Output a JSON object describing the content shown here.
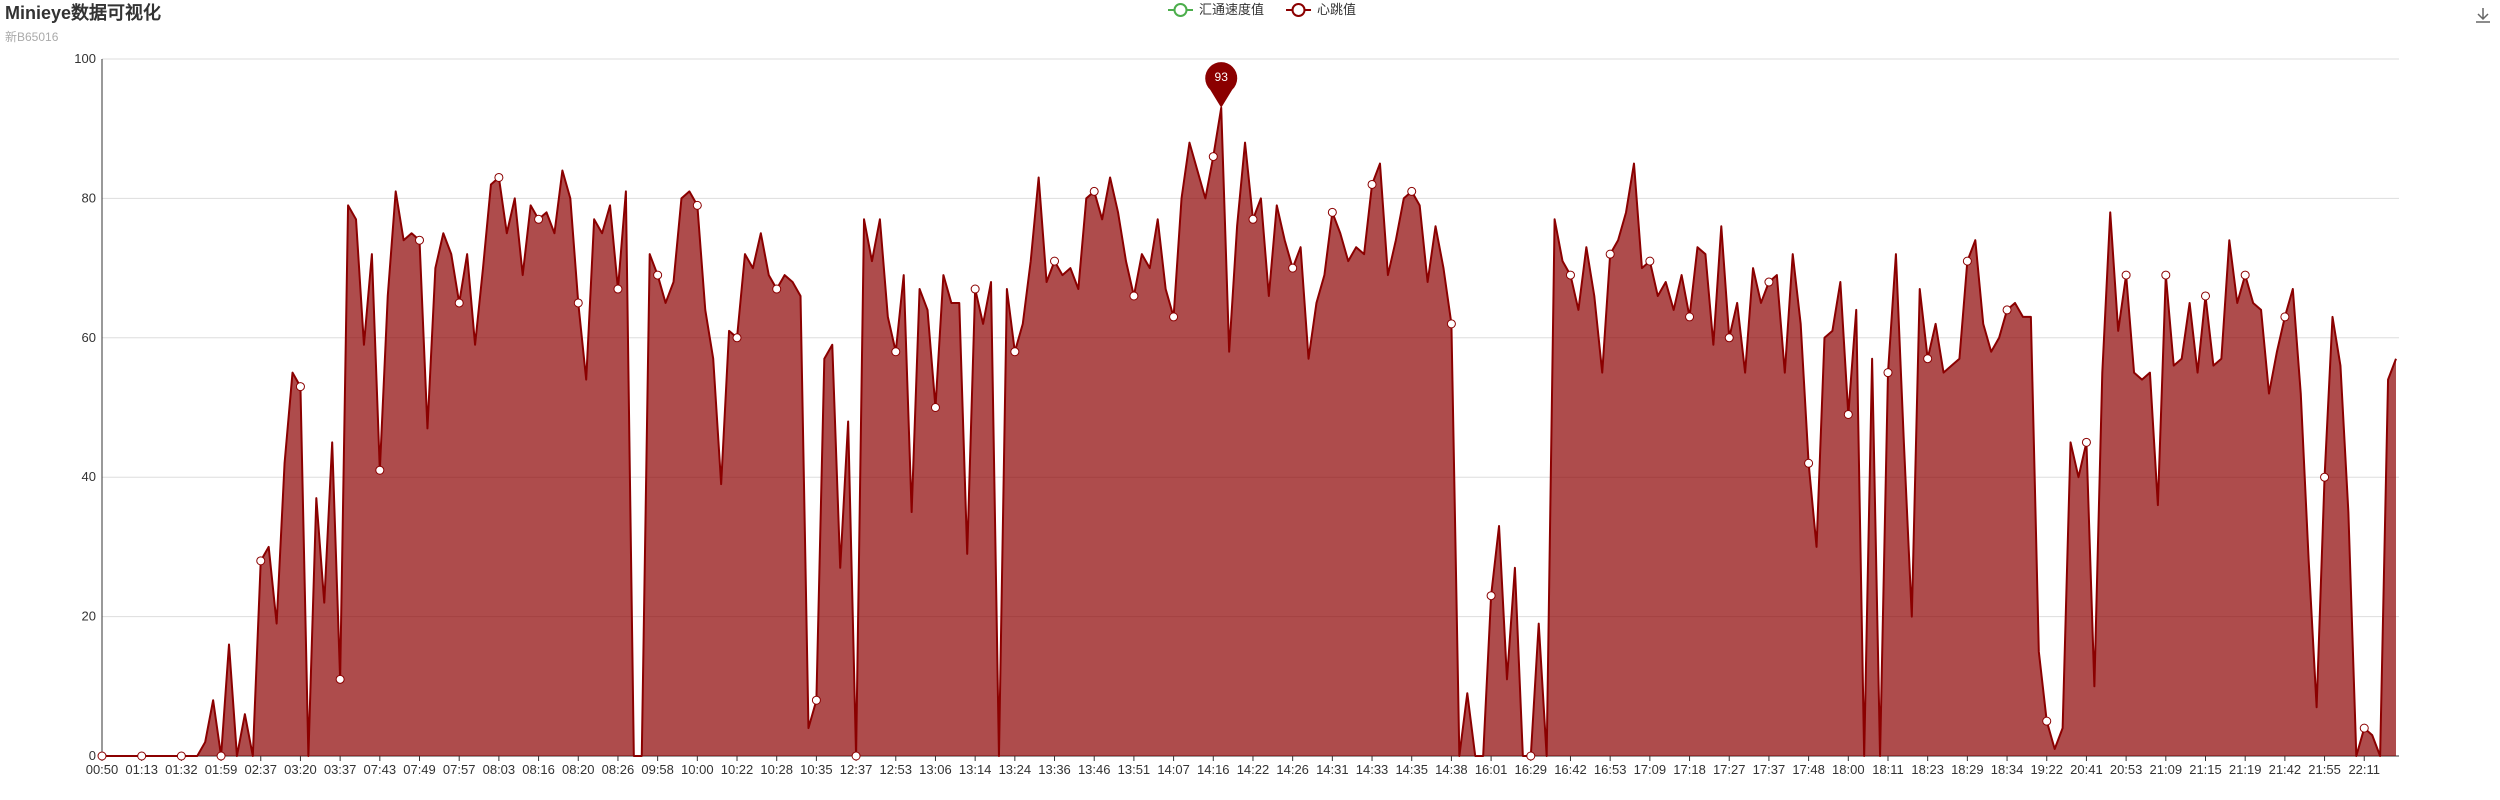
{
  "chart_data": {
    "type": "area",
    "title": "Minieye数据可视化",
    "subtitle": "新B65016",
    "categories": [
      "00:50",
      null,
      null,
      null,
      null,
      "01:13",
      null,
      null,
      null,
      null,
      "01:32",
      null,
      null,
      null,
      null,
      "01:59",
      null,
      null,
      null,
      null,
      "02:37",
      null,
      null,
      null,
      null,
      "03:20",
      null,
      null,
      null,
      null,
      "03:37",
      null,
      null,
      null,
      null,
      "07:43",
      null,
      null,
      null,
      null,
      "07:49",
      null,
      null,
      null,
      null,
      "07:57",
      null,
      null,
      null,
      null,
      "08:03",
      null,
      null,
      null,
      null,
      "08:16",
      null,
      null,
      null,
      null,
      "08:20",
      null,
      null,
      null,
      null,
      "08:26",
      null,
      null,
      null,
      null,
      "09:58",
      null,
      null,
      null,
      null,
      "10:00",
      null,
      null,
      null,
      null,
      "10:22",
      null,
      null,
      null,
      null,
      "10:28",
      null,
      null,
      null,
      null,
      "10:35",
      null,
      null,
      null,
      null,
      "12:37",
      null,
      null,
      null,
      null,
      "12:53",
      null,
      null,
      null,
      null,
      "13:06",
      null,
      null,
      null,
      null,
      "13:14",
      null,
      null,
      null,
      null,
      "13:24",
      null,
      null,
      null,
      null,
      "13:36",
      null,
      null,
      null,
      null,
      "13:46",
      null,
      null,
      null,
      null,
      "13:51",
      null,
      null,
      null,
      null,
      "14:07",
      null,
      null,
      null,
      null,
      "14:16",
      null,
      null,
      null,
      null,
      "14:22",
      null,
      null,
      null,
      null,
      "14:26",
      null,
      null,
      null,
      null,
      "14:31",
      null,
      null,
      null,
      null,
      "14:33",
      null,
      null,
      null,
      null,
      "14:35",
      null,
      null,
      null,
      null,
      "14:38",
      null,
      null,
      null,
      null,
      "16:01",
      null,
      null,
      null,
      null,
      "16:29",
      null,
      null,
      null,
      null,
      "16:42",
      null,
      null,
      null,
      null,
      "16:53",
      null,
      null,
      null,
      null,
      "17:09",
      null,
      null,
      null,
      null,
      "17:18",
      null,
      null,
      null,
      null,
      "17:27",
      null,
      null,
      null,
      null,
      "17:37",
      null,
      null,
      null,
      null,
      "17:48",
      null,
      null,
      null,
      null,
      "18:00",
      null,
      null,
      null,
      null,
      "18:11",
      null,
      null,
      null,
      null,
      "18:23",
      null,
      null,
      null,
      null,
      "18:29",
      null,
      null,
      null,
      null,
      "18:34",
      null,
      null,
      null,
      null,
      "19:22",
      null,
      null,
      null,
      null,
      "20:41",
      null,
      null,
      null,
      null,
      "20:53",
      null,
      null,
      null,
      null,
      "21:09",
      null,
      null,
      null,
      null,
      "21:15",
      null,
      null,
      null,
      null,
      "21:19",
      null,
      null,
      null,
      null,
      "21:42",
      null,
      null,
      null,
      null,
      "21:55",
      null,
      null,
      null,
      null,
      "22:11",
      null,
      null,
      null,
      null
    ],
    "series": [
      {
        "name": "汇通速度值",
        "color": "#4cae4c"
      },
      {
        "name": "心跳值",
        "color": "#8b0000",
        "values": [
          0,
          0,
          0,
          0,
          0,
          0,
          0,
          0,
          0,
          0,
          0,
          0,
          0,
          2,
          8,
          0,
          16,
          0,
          6,
          0,
          28,
          30,
          19,
          42,
          55,
          53,
          0,
          37,
          22,
          45,
          11,
          79,
          77,
          59,
          72,
          41,
          66,
          81,
          74,
          75,
          74,
          47,
          70,
          75,
          72,
          65,
          72,
          59,
          70,
          82,
          83,
          75,
          80,
          69,
          79,
          77,
          78,
          75,
          84,
          80,
          65,
          54,
          77,
          75,
          79,
          67,
          81,
          0,
          0,
          72,
          69,
          65,
          68,
          80,
          81,
          79,
          64,
          57,
          39,
          61,
          60,
          72,
          70,
          75,
          69,
          67,
          69,
          68,
          66,
          4,
          8,
          57,
          59,
          27,
          48,
          0,
          77,
          71,
          77,
          63,
          58,
          69,
          35,
          67,
          64,
          50,
          69,
          65,
          65,
          29,
          67,
          62,
          68,
          0,
          67,
          58,
          62,
          71,
          83,
          68,
          71,
          69,
          70,
          67,
          80,
          81,
          77,
          83,
          78,
          71,
          66,
          72,
          70,
          77,
          67,
          63,
          80,
          88,
          84,
          80,
          86,
          93,
          58,
          76,
          88,
          77,
          80,
          66,
          79,
          74,
          70,
          73,
          57,
          65,
          69,
          78,
          75,
          71,
          73,
          72,
          82,
          85,
          69,
          74,
          80,
          81,
          79,
          68,
          76,
          70,
          62,
          0,
          9,
          0,
          0,
          23,
          33,
          11,
          27,
          0,
          0,
          19,
          0,
          77,
          71,
          69,
          64,
          73,
          66,
          55,
          72,
          74,
          78,
          85,
          70,
          71,
          66,
          68,
          64,
          69,
          63,
          73,
          72,
          59,
          76,
          60,
          65,
          55,
          70,
          65,
          68,
          69,
          55,
          72,
          62,
          42,
          30,
          60,
          61,
          68,
          49,
          64,
          0,
          57,
          0,
          55,
          72,
          45,
          20,
          67,
          57,
          62,
          55,
          56,
          57,
          71,
          74,
          62,
          58,
          60,
          64,
          65,
          63,
          63,
          15,
          5,
          1,
          4,
          45,
          40,
          45,
          10,
          55,
          78,
          61,
          69,
          55,
          54,
          55,
          36,
          69,
          56,
          57,
          65,
          55,
          66,
          56,
          57,
          74,
          65,
          69,
          65,
          64,
          52,
          58,
          63,
          67,
          52,
          28,
          7,
          40,
          63,
          56,
          35,
          0,
          4,
          3,
          0,
          54,
          57
        ]
      }
    ],
    "ylim": [
      0,
      100
    ],
    "yticks": [
      0,
      20,
      40,
      60,
      80,
      100
    ],
    "grid": true
  }
}
